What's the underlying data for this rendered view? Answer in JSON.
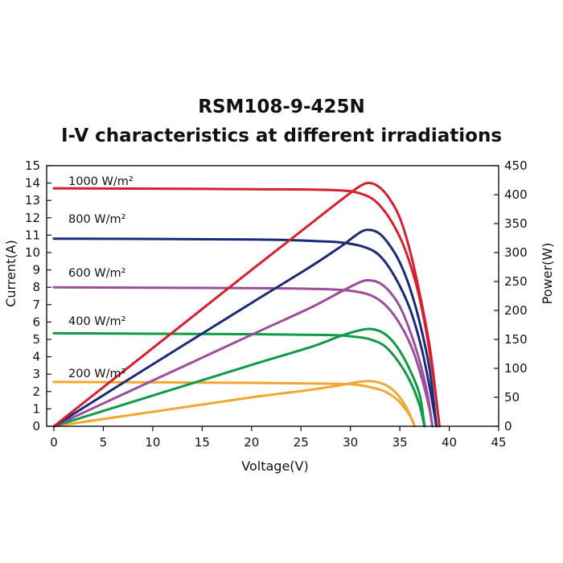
{
  "chart_data": {
    "type": "line",
    "title": "RSM108-9-425N",
    "subtitle": "I-V characteristics at different irradiations",
    "xlabel": "Voltage(V)",
    "ylabel_left": "Current(A)",
    "ylabel_right": "Power(W)",
    "xlim": [
      0,
      45
    ],
    "ylim_left": [
      0,
      15
    ],
    "ylim_right": [
      0,
      450
    ],
    "x_ticks": [
      "0",
      "5",
      "10",
      "15",
      "20",
      "25",
      "30",
      "35",
      "40",
      "45"
    ],
    "y_left_ticks": [
      "0",
      "1",
      "2",
      "3",
      "4",
      "5",
      "6",
      "7",
      "8",
      "9",
      "10",
      "11",
      "12",
      "13",
      "14",
      "15"
    ],
    "y_right_ticks": [
      "0",
      "50",
      "100",
      "150",
      "200",
      "250",
      "300",
      "350",
      "400",
      "450"
    ],
    "grid": false,
    "series": [
      {
        "name": "1000 W/m²",
        "color": "#d4202f",
        "iv": [
          [
            0,
            13.7
          ],
          [
            20,
            13.65
          ],
          [
            28,
            13.6
          ],
          [
            31,
            13.4
          ],
          [
            33,
            12.7
          ],
          [
            35,
            10.9
          ],
          [
            36.5,
            8.5
          ],
          [
            37.5,
            6.0
          ],
          [
            38.3,
            3.2
          ],
          [
            38.8,
            1.0
          ],
          [
            39.0,
            0
          ]
        ],
        "pv": [
          [
            0,
            0
          ],
          [
            10,
            135
          ],
          [
            20,
            270
          ],
          [
            26,
            350
          ],
          [
            29,
            390
          ],
          [
            31,
            415
          ],
          [
            32,
            420
          ],
          [
            33,
            412
          ],
          [
            34,
            392
          ],
          [
            35,
            360
          ],
          [
            36,
            305
          ],
          [
            37,
            230
          ],
          [
            38,
            140
          ],
          [
            38.6,
            60
          ],
          [
            39.0,
            0
          ]
        ]
      },
      {
        "name": "800 W/m²",
        "color": "#1c2a7a",
        "iv": [
          [
            0,
            10.8
          ],
          [
            20,
            10.75
          ],
          [
            27,
            10.65
          ],
          [
            29.5,
            10.55
          ],
          [
            31.5,
            10.3
          ],
          [
            33,
            9.8
          ],
          [
            34.5,
            8.6
          ],
          [
            36,
            6.8
          ],
          [
            37.2,
            4.5
          ],
          [
            38.1,
            2.0
          ],
          [
            38.7,
            0
          ]
        ],
        "pv": [
          [
            0,
            0
          ],
          [
            10,
            107
          ],
          [
            20,
            213
          ],
          [
            26,
            276
          ],
          [
            29,
            310
          ],
          [
            31,
            335
          ],
          [
            32,
            339
          ],
          [
            33,
            332
          ],
          [
            34,
            312
          ],
          [
            35,
            283
          ],
          [
            36,
            240
          ],
          [
            37,
            180
          ],
          [
            38,
            100
          ],
          [
            38.7,
            0
          ]
        ]
      },
      {
        "name": "600 W/m²",
        "color": "#9b4f9b",
        "iv": [
          [
            0,
            8.0
          ],
          [
            20,
            7.95
          ],
          [
            27,
            7.9
          ],
          [
            30,
            7.8
          ],
          [
            32,
            7.55
          ],
          [
            33.5,
            7.0
          ],
          [
            35,
            5.9
          ],
          [
            36.3,
            4.4
          ],
          [
            37.3,
            2.6
          ],
          [
            38.0,
            1.0
          ],
          [
            38.3,
            0
          ]
        ],
        "pv": [
          [
            0,
            0
          ],
          [
            10,
            79
          ],
          [
            20,
            158
          ],
          [
            26,
            205
          ],
          [
            29,
            232
          ],
          [
            31,
            249
          ],
          [
            32,
            252
          ],
          [
            33,
            247
          ],
          [
            34,
            232
          ],
          [
            35,
            207
          ],
          [
            36,
            166
          ],
          [
            37,
            113
          ],
          [
            37.8,
            55
          ],
          [
            38.3,
            0
          ]
        ]
      },
      {
        "name": "400 W/m²",
        "color": "#0f9a48",
        "iv": [
          [
            0,
            5.35
          ],
          [
            20,
            5.3
          ],
          [
            28,
            5.25
          ],
          [
            30.5,
            5.15
          ],
          [
            32,
            5.0
          ],
          [
            33.5,
            4.6
          ],
          [
            35,
            3.6
          ],
          [
            36.2,
            2.4
          ],
          [
            37.0,
            1.2
          ],
          [
            37.5,
            0
          ]
        ],
        "pv": [
          [
            0,
            0
          ],
          [
            10,
            53
          ],
          [
            20,
            106
          ],
          [
            26,
            137
          ],
          [
            29,
            156
          ],
          [
            31,
            166
          ],
          [
            32,
            168
          ],
          [
            33,
            164
          ],
          [
            34,
            152
          ],
          [
            35,
            130
          ],
          [
            36,
            98
          ],
          [
            37,
            55
          ],
          [
            37.5,
            0
          ]
        ]
      },
      {
        "name": "200 W/m²",
        "color": "#f0a830",
        "iv": [
          [
            0,
            2.55
          ],
          [
            20,
            2.5
          ],
          [
            28,
            2.45
          ],
          [
            30.5,
            2.4
          ],
          [
            32,
            2.25
          ],
          [
            33.5,
            2.0
          ],
          [
            34.8,
            1.5
          ],
          [
            35.8,
            0.8
          ],
          [
            36.3,
            0.3
          ],
          [
            36.5,
            0
          ]
        ],
        "pv": [
          [
            0,
            0
          ],
          [
            10,
            25
          ],
          [
            20,
            50
          ],
          [
            26,
            63
          ],
          [
            29,
            71
          ],
          [
            31,
            77
          ],
          [
            32,
            78
          ],
          [
            33,
            75
          ],
          [
            34,
            67
          ],
          [
            35,
            50
          ],
          [
            35.8,
            28
          ],
          [
            36.5,
            0
          ]
        ]
      }
    ]
  }
}
